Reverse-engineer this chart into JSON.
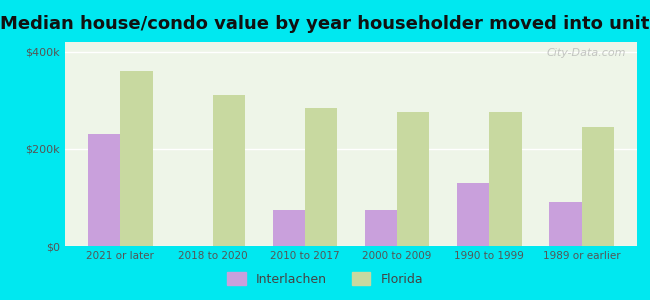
{
  "title": "Median house/condo value by year householder moved into unit",
  "categories": [
    "2021 or later",
    "2018 to 2020",
    "2010 to 2017",
    "2000 to 2009",
    "1990 to 1999",
    "1989 or earlier"
  ],
  "interlachen": [
    230000,
    0,
    75000,
    75000,
    130000,
    90000
  ],
  "florida": [
    360000,
    310000,
    285000,
    275000,
    275000,
    245000
  ],
  "interlachen_color": "#c9a0dc",
  "florida_color": "#c8d9a0",
  "background_outer": "#00e8f0",
  "background_inner": "#eef5e8",
  "ylim": [
    0,
    420000
  ],
  "yticks": [
    0,
    200000,
    400000
  ],
  "ytick_labels": [
    "$0",
    "$200k",
    "$400k"
  ],
  "legend_interlachen": "Interlachen",
  "legend_florida": "Florida",
  "bar_width": 0.35,
  "title_fontsize": 13,
  "watermark": "City-Data.com"
}
